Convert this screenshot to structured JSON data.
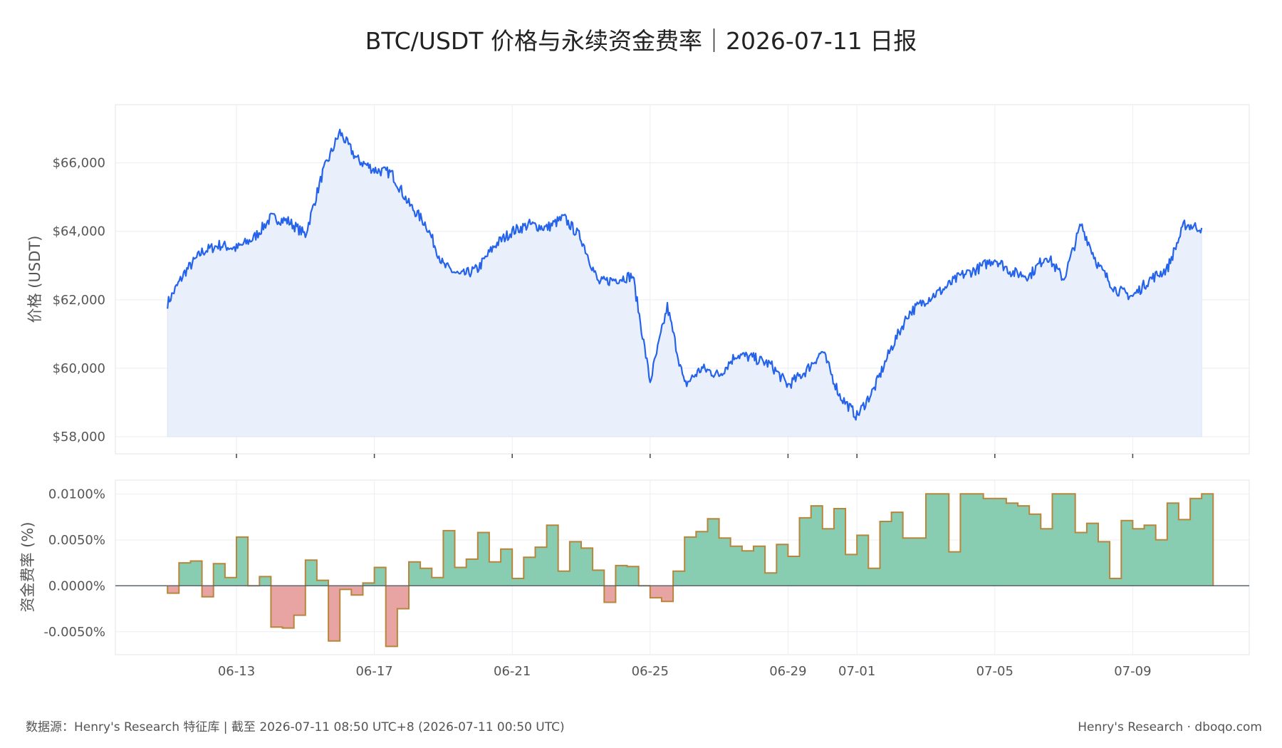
{
  "chart_data": {
    "title": "BTC/USDT 价格与永续资金费率｜2026-07-11 日报",
    "footer_left": "数据源：Henry's Research 特征库 | 截至 2026-07-11 08:50 UTC+8 (2026-07-11 00:50 UTC)",
    "footer_right": "Henry's Research · dboqo.com",
    "x_ticks": [
      "06-13",
      "06-17",
      "06-21",
      "06-25",
      "06-29",
      "07-01",
      "07-05",
      "07-09"
    ],
    "price_panel": {
      "type": "area",
      "ylabel": "价格 (USDT)",
      "y_ticks": [
        "$58,000",
        "$60,000",
        "$62,000",
        "$64,000",
        "$66,000"
      ],
      "ylim": [
        57500,
        67700
      ],
      "line_color": "#2563eb",
      "fill_color": "#e9effb",
      "series": {
        "x": [
          "06-11",
          "06-11 12h",
          "06-12",
          "06-12 12h",
          "06-13",
          "06-13 12h",
          "06-14",
          "06-14 12h",
          "06-15",
          "06-15 12h",
          "06-16",
          "06-16 12h",
          "06-17",
          "06-17 12h",
          "06-18",
          "06-18 12h",
          "06-19",
          "06-19 12h",
          "06-20",
          "06-20 12h",
          "06-21",
          "06-21 12h",
          "06-22",
          "06-22 12h",
          "06-23",
          "06-23 12h",
          "06-24",
          "06-24 12h",
          "06-25",
          "06-25 12h",
          "06-26",
          "06-26 12h",
          "06-27",
          "06-27 12h",
          "06-28",
          "06-28 12h",
          "06-29",
          "06-29 12h",
          "06-30",
          "06-30 12h",
          "07-01",
          "07-01 12h",
          "07-02",
          "07-02 12h",
          "07-03",
          "07-03 12h",
          "07-04",
          "07-04 12h",
          "07-05",
          "07-05 12h",
          "07-06",
          "07-06 12h",
          "07-07",
          "07-07 12h",
          "07-08",
          "07-08 12h",
          "07-09",
          "07-09 12h",
          "07-10",
          "07-10 12h",
          "07-11"
        ],
        "values": [
          61900,
          62800,
          63400,
          63600,
          63500,
          63800,
          64400,
          64300,
          63900,
          65700,
          66900,
          66100,
          65800,
          65700,
          64800,
          64200,
          63000,
          62700,
          62900,
          63600,
          64000,
          64200,
          64100,
          64400,
          63800,
          62500,
          62600,
          62700,
          59600,
          61800,
          59500,
          60000,
          59800,
          60400,
          60300,
          60100,
          59500,
          59900,
          60500,
          59200,
          58600,
          59400,
          60600,
          61600,
          62000,
          62300,
          62700,
          62900,
          63200,
          62800,
          62700,
          63300,
          62600,
          64200,
          63000,
          62300,
          62100,
          62600,
          62900,
          64200,
          64100
        ]
      }
    },
    "funding_panel": {
      "type": "bar",
      "ylabel": "资金费率 (%)",
      "y_ticks": [
        "-0.0050%",
        "0.0000%",
        "0.0050%",
        "0.0100%"
      ],
      "ylim": [
        -0.0075,
        0.0115
      ],
      "positive_color": "#88ccb2",
      "negative_color": "#e8a3a3",
      "edge_color": "#b8863b",
      "series": {
        "x_start": "06-11",
        "interval": "8h",
        "values": [
          -0.0008,
          0.0025,
          0.0027,
          -0.0012,
          0.0024,
          0.0009,
          0.0053,
          0.0,
          0.001,
          -0.0045,
          -0.0046,
          -0.0032,
          0.0028,
          0.0006,
          -0.006,
          -0.0004,
          -0.001,
          0.0003,
          0.002,
          -0.0066,
          -0.0025,
          0.0026,
          0.0019,
          0.0009,
          0.006,
          0.002,
          0.0029,
          0.0058,
          0.0026,
          0.004,
          0.0008,
          0.0031,
          0.0042,
          0.0066,
          0.0016,
          0.0048,
          0.0041,
          0.0017,
          -0.0018,
          0.0022,
          0.0021,
          0.0,
          -0.0013,
          -0.0017,
          0.0016,
          0.0053,
          0.0059,
          0.0073,
          0.0052,
          0.0043,
          0.0038,
          0.0043,
          0.0014,
          0.0045,
          0.0032,
          0.0074,
          0.0087,
          0.0062,
          0.0084,
          0.0034,
          0.0055,
          0.0019,
          0.007,
          0.008,
          0.0052,
          0.0052,
          0.01,
          0.01,
          0.0037,
          0.01,
          0.01,
          0.0095,
          0.0095,
          0.009,
          0.0087,
          0.0078,
          0.0062,
          0.01,
          0.01,
          0.0058,
          0.0068,
          0.0048,
          0.0008,
          0.0071,
          0.0062,
          0.0066,
          0.005,
          0.009,
          0.0072,
          0.0095,
          0.01
        ]
      }
    }
  }
}
